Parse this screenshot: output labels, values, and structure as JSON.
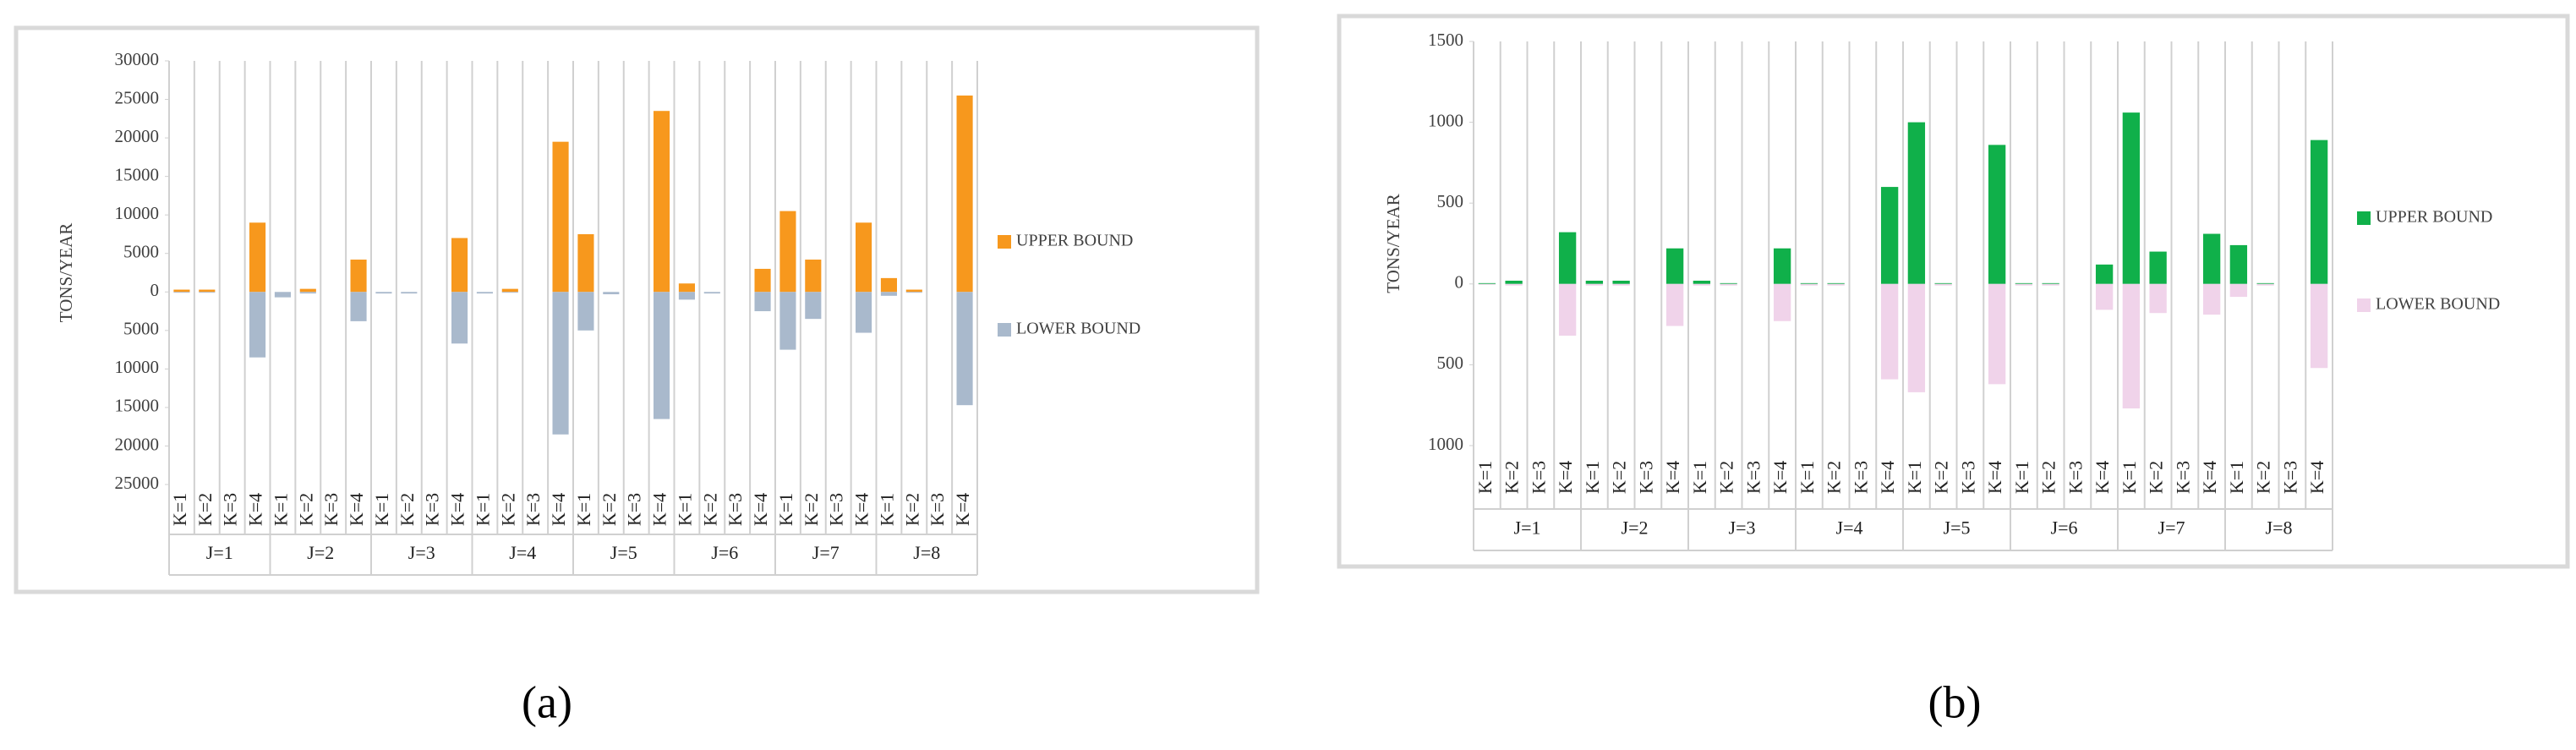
{
  "chart_data": [
    {
      "type": "bar",
      "label": "(a)",
      "y_label": "TONS/YEAR",
      "categories": [
        "K=1",
        "K=2",
        "K=3",
        "K=4",
        "K=1",
        "K=2",
        "K=3",
        "K=4",
        "K=1",
        "K=2",
        "K=3",
        "K=4",
        "K=1",
        "K=2",
        "K=3",
        "K=4",
        "K=1",
        "K=2",
        "K=3",
        "K=4",
        "K=1",
        "K=2",
        "K=3",
        "K=4",
        "K=1",
        "K=2",
        "K=3",
        "K=4",
        "K=1",
        "K=2",
        "K=3",
        "K=4"
      ],
      "groups": [
        "J=1",
        "J=2",
        "J=3",
        "J=4",
        "J=5",
        "J=6",
        "J=7",
        "J=8"
      ],
      "series": [
        {
          "name": "UPPER BOUND",
          "color": "#f7981d",
          "values": [
            300,
            300,
            0,
            9000,
            0,
            400,
            0,
            4200,
            0,
            0,
            0,
            7000,
            0,
            400,
            0,
            19500,
            7500,
            0,
            0,
            23500,
            1100,
            0,
            0,
            3000,
            10500,
            4200,
            0,
            9000,
            1800,
            300,
            0,
            25500
          ]
        },
        {
          "name": "LOWER BOUND",
          "color": "#a9b9cc",
          "values": [
            -100,
            -100,
            0,
            -8500,
            -700,
            -200,
            0,
            -3800,
            -200,
            -200,
            0,
            -6700,
            -200,
            -100,
            0,
            -18500,
            -5000,
            -300,
            0,
            -16500,
            -1000,
            -200,
            0,
            -2500,
            -7500,
            -3500,
            0,
            -5300,
            -500,
            -100,
            0,
            -14700
          ]
        }
      ],
      "ylim": [
        -25000,
        30000
      ],
      "yticks": [
        {
          "value": -25000,
          "label": "25000"
        },
        {
          "value": -20000,
          "label": "20000"
        },
        {
          "value": -15000,
          "label": "15000"
        },
        {
          "value": -10000,
          "label": "10000"
        },
        {
          "value": -5000,
          "label": "5000"
        },
        0,
        5000,
        10000,
        15000,
        20000,
        25000,
        30000
      ],
      "grid": true,
      "legend": "right"
    },
    {
      "type": "bar",
      "label": "(b)",
      "y_label": "TONS/YEAR",
      "categories": [
        "K=1",
        "K=2",
        "K=3",
        "K=4",
        "K=1",
        "K=2",
        "K=3",
        "K=4",
        "K=1",
        "K=2",
        "K=3",
        "K=4",
        "K=1",
        "K=2",
        "K=3",
        "K=4",
        "K=1",
        "K=2",
        "K=3",
        "K=4",
        "K=1",
        "K=2",
        "K=3",
        "K=4",
        "K=1",
        "K=2",
        "K=3",
        "K=4",
        "K=1",
        "K=2",
        "K=3",
        "K=4"
      ],
      "groups": [
        "J=1",
        "J=2",
        "J=3",
        "J=4",
        "J=5",
        "J=6",
        "J=7",
        "J=8"
      ],
      "series": [
        {
          "name": "UPPER BOUND",
          "color": "#10b04a",
          "values": [
            5,
            20,
            0,
            320,
            20,
            20,
            0,
            220,
            20,
            5,
            0,
            220,
            5,
            5,
            0,
            600,
            1000,
            5,
            0,
            860,
            5,
            5,
            0,
            120,
            1060,
            200,
            0,
            310,
            240,
            5,
            0,
            890
          ]
        },
        {
          "name": "LOWER BOUND",
          "color": "#f0d3ea",
          "values": [
            -5,
            -10,
            0,
            -320,
            -10,
            -10,
            0,
            -260,
            -10,
            -10,
            0,
            -230,
            -10,
            -10,
            0,
            -590,
            -670,
            -10,
            0,
            -620,
            -10,
            -10,
            0,
            -160,
            -770,
            -180,
            0,
            -190,
            -80,
            -10,
            0,
            -520
          ]
        }
      ],
      "ylim": [
        -1000,
        1500
      ],
      "yticks": [
        {
          "value": -1000,
          "label": "1000"
        },
        {
          "value": -500,
          "label": "500"
        },
        0,
        500,
        1000,
        1500
      ],
      "grid": true,
      "legend": "right"
    }
  ]
}
